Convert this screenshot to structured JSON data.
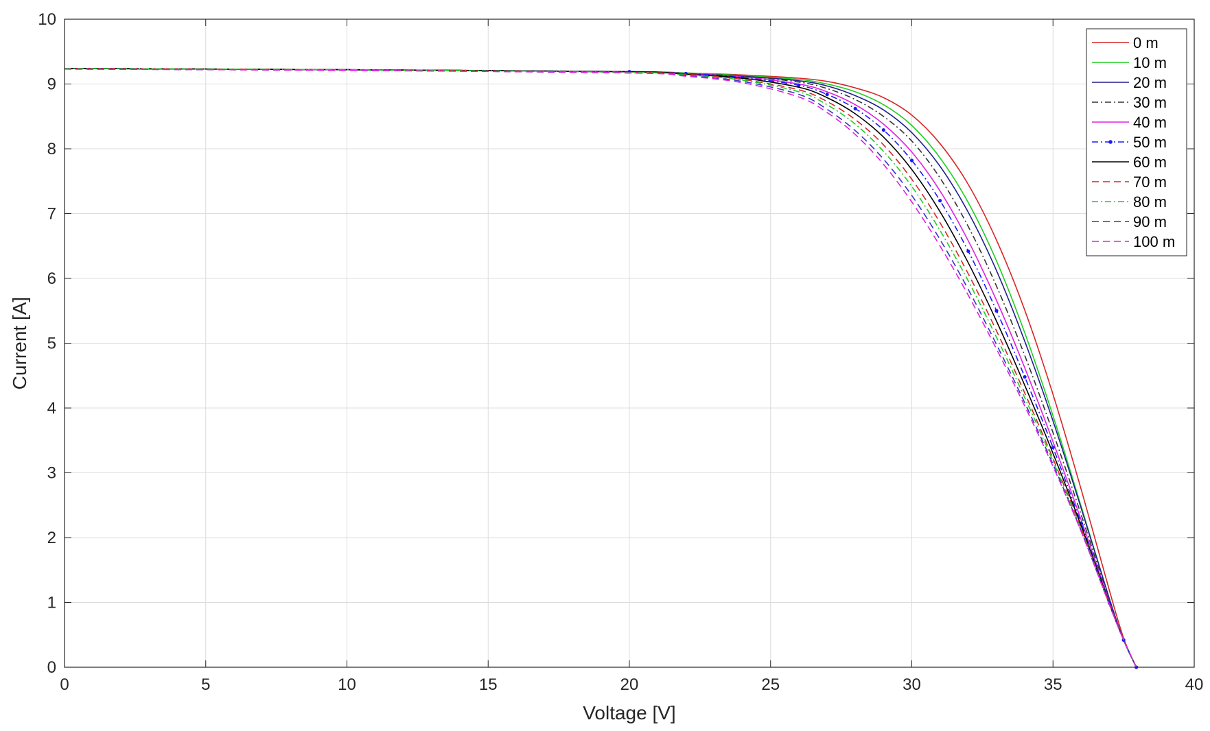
{
  "chart_data": {
    "type": "line",
    "title": "",
    "xlabel": "Voltage [V]",
    "ylabel": "Current [A]",
    "xlim": [
      0,
      40
    ],
    "ylim": [
      0,
      10
    ],
    "xticks": [
      0,
      5,
      10,
      15,
      20,
      25,
      30,
      35,
      40
    ],
    "yticks": [
      0,
      1,
      2,
      3,
      4,
      5,
      6,
      7,
      8,
      9,
      10
    ],
    "grid": true,
    "legend_position": "top-right",
    "series": [
      {
        "name": "0 m",
        "color": "#d62728",
        "style": "solid",
        "marker": "none",
        "x": [
          0,
          10,
          20,
          22,
          24,
          26,
          27,
          28,
          29,
          30,
          31,
          32,
          33,
          34,
          35,
          36,
          37,
          37.5,
          37.95
        ],
        "y": [
          9.24,
          9.22,
          9.19,
          9.17,
          9.14,
          9.09,
          9.04,
          8.94,
          8.79,
          8.52,
          8.08,
          7.45,
          6.59,
          5.51,
          4.21,
          2.74,
          1.18,
          0.45,
          0.0
        ]
      },
      {
        "name": "10 m",
        "color": "#22cc22",
        "style": "solid",
        "marker": "none",
        "x": [
          0,
          10,
          20,
          22,
          24,
          26,
          27,
          28,
          29,
          30,
          31,
          32,
          33,
          34,
          35,
          36,
          37,
          37.5,
          37.95
        ],
        "y": [
          9.24,
          9.22,
          9.19,
          9.17,
          9.13,
          9.07,
          9.0,
          8.88,
          8.68,
          8.36,
          7.86,
          7.17,
          6.27,
          5.16,
          3.88,
          2.48,
          1.05,
          0.42,
          0.0
        ]
      },
      {
        "name": "20 m",
        "color": "#1f1f8f",
        "style": "solid",
        "marker": "none",
        "x": [
          0,
          10,
          20,
          22,
          24,
          26,
          27,
          28,
          29,
          30,
          31,
          32,
          33,
          34,
          35,
          36,
          37,
          37.5,
          37.95
        ],
        "y": [
          9.24,
          9.22,
          9.19,
          9.16,
          9.12,
          9.05,
          8.97,
          8.82,
          8.6,
          8.25,
          7.73,
          7.02,
          6.12,
          5.03,
          3.8,
          2.45,
          1.05,
          0.42,
          0.0
        ]
      },
      {
        "name": "30 m",
        "color": "#333333",
        "style": "dashdot",
        "marker": "none",
        "x": [
          0,
          10,
          20,
          22,
          24,
          26,
          27,
          28,
          29,
          30,
          31,
          32,
          33,
          34,
          35,
          36,
          37,
          37.5,
          37.95
        ],
        "y": [
          9.24,
          9.22,
          9.19,
          9.16,
          9.12,
          9.03,
          8.93,
          8.76,
          8.5,
          8.12,
          7.55,
          6.8,
          5.88,
          4.81,
          3.62,
          2.35,
          1.02,
          0.42,
          0.0
        ]
      },
      {
        "name": "40 m",
        "color": "#e020e0",
        "style": "solid",
        "marker": "none",
        "x": [
          0,
          10,
          20,
          22,
          24,
          26,
          27,
          28,
          29,
          30,
          31,
          32,
          33,
          34,
          35,
          36,
          37,
          37.5,
          37.95
        ],
        "y": [
          9.24,
          9.22,
          9.19,
          9.16,
          9.11,
          9.0,
          8.88,
          8.68,
          8.38,
          7.95,
          7.35,
          6.58,
          5.66,
          4.62,
          3.48,
          2.27,
          1.0,
          0.42,
          0.0
        ]
      },
      {
        "name": "50 m",
        "color": "#1a1aff",
        "style": "dashdot",
        "marker": "dot",
        "x": [
          0,
          10,
          20,
          22,
          24,
          26,
          27,
          28,
          29,
          30,
          31,
          32,
          33,
          34,
          35,
          36,
          37,
          37.5,
          37.95
        ],
        "y": [
          9.24,
          9.22,
          9.19,
          9.16,
          9.1,
          8.98,
          8.84,
          8.62,
          8.29,
          7.82,
          7.2,
          6.42,
          5.5,
          4.48,
          3.39,
          2.22,
          0.99,
          0.42,
          0.0
        ]
      },
      {
        "name": "60 m",
        "color": "#000000",
        "style": "solid",
        "marker": "none",
        "x": [
          0,
          10,
          20,
          22,
          24,
          26,
          27,
          28,
          29,
          30,
          31,
          32,
          33,
          34,
          35,
          36,
          37,
          37.5,
          37.95
        ],
        "y": [
          9.24,
          9.22,
          9.19,
          9.15,
          9.09,
          8.95,
          8.79,
          8.54,
          8.18,
          7.68,
          7.03,
          6.24,
          5.34,
          4.35,
          3.3,
          2.18,
          0.98,
          0.42,
          0.0
        ]
      },
      {
        "name": "70 m",
        "color": "#d62728",
        "style": "dashed",
        "marker": "none",
        "x": [
          0,
          10,
          20,
          22,
          24,
          26,
          27,
          28,
          29,
          30,
          31,
          32,
          33,
          34,
          35,
          36,
          37,
          37.5,
          37.95
        ],
        "y": [
          9.24,
          9.22,
          9.18,
          9.15,
          9.07,
          8.91,
          8.73,
          8.45,
          8.06,
          7.53,
          6.86,
          6.07,
          5.19,
          4.23,
          3.22,
          2.14,
          0.97,
          0.42,
          0.0
        ]
      },
      {
        "name": "80 m",
        "color": "#22cc22",
        "style": "dashdot",
        "marker": "none",
        "x": [
          0,
          10,
          20,
          22,
          24,
          26,
          27,
          28,
          29,
          30,
          31,
          32,
          33,
          34,
          35,
          36,
          37,
          37.5,
          37.95
        ],
        "y": [
          9.24,
          9.22,
          9.18,
          9.14,
          9.06,
          8.88,
          8.68,
          8.38,
          7.96,
          7.42,
          6.74,
          5.96,
          5.09,
          4.16,
          3.18,
          2.12,
          0.97,
          0.42,
          0.0
        ]
      },
      {
        "name": "90 m",
        "color": "#3333cc",
        "style": "dashed",
        "marker": "none",
        "x": [
          0,
          10,
          20,
          22,
          24,
          26,
          27,
          28,
          29,
          30,
          31,
          32,
          33,
          34,
          35,
          36,
          37,
          37.5,
          37.95
        ],
        "y": [
          9.23,
          9.21,
          9.17,
          9.13,
          9.04,
          8.84,
          8.61,
          8.28,
          7.84,
          7.28,
          6.6,
          5.83,
          4.98,
          4.08,
          3.13,
          2.1,
          0.96,
          0.42,
          0.0
        ]
      },
      {
        "name": "100 m",
        "color": "#e020e0",
        "style": "dashed",
        "marker": "none",
        "x": [
          0,
          10,
          20,
          22,
          24,
          26,
          27,
          28,
          29,
          30,
          31,
          32,
          33,
          34,
          35,
          36,
          37,
          37.5,
          37.95
        ],
        "y": [
          9.23,
          9.21,
          9.17,
          9.12,
          9.02,
          8.8,
          8.56,
          8.22,
          7.76,
          7.18,
          6.5,
          5.74,
          4.91,
          4.03,
          3.1,
          2.09,
          0.96,
          0.42,
          0.0
        ]
      }
    ]
  }
}
